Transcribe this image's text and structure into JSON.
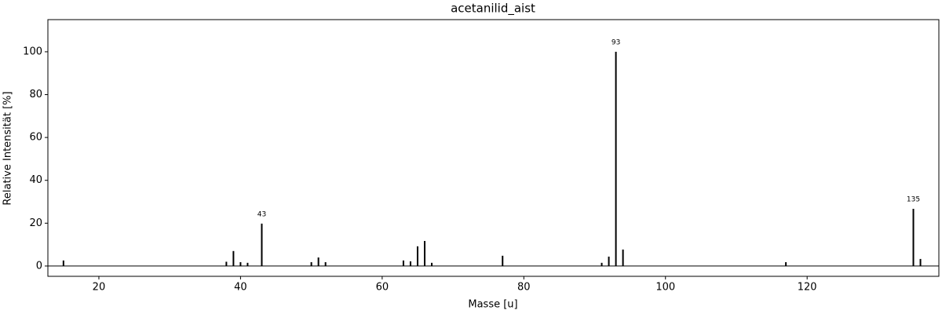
{
  "chart_data": {
    "type": "stem",
    "title": "acetanilid_aist",
    "x_label": "Masse [u]",
    "y_label": "Relative Intensität [%]",
    "x": [
      15,
      38,
      39,
      40,
      41,
      43,
      50,
      51,
      52,
      63,
      64,
      65,
      66,
      67,
      77,
      91,
      92,
      93,
      94,
      117,
      135,
      136
    ],
    "values": [
      2.6,
      2,
      7,
      1.8,
      1.5,
      19.8,
      1.8,
      4,
      1.8,
      2.6,
      2.2,
      9.2,
      11.7,
      1.5,
      4.8,
      1.5,
      4.4,
      100,
      7.7,
      1.8,
      26.7,
      3.3
    ],
    "color": "#000000",
    "xlim": [
      12.8,
      138.6
    ],
    "ylim": [
      -4.8,
      115
    ],
    "xticks": [
      20,
      40,
      60,
      80,
      100,
      120
    ],
    "yticks": [
      0,
      20,
      40,
      60,
      80,
      100
    ],
    "annotations": [
      {
        "x": 43,
        "text": "43"
      },
      {
        "x": 93,
        "text": "93"
      },
      {
        "x": 135,
        "text": "135"
      }
    ]
  }
}
